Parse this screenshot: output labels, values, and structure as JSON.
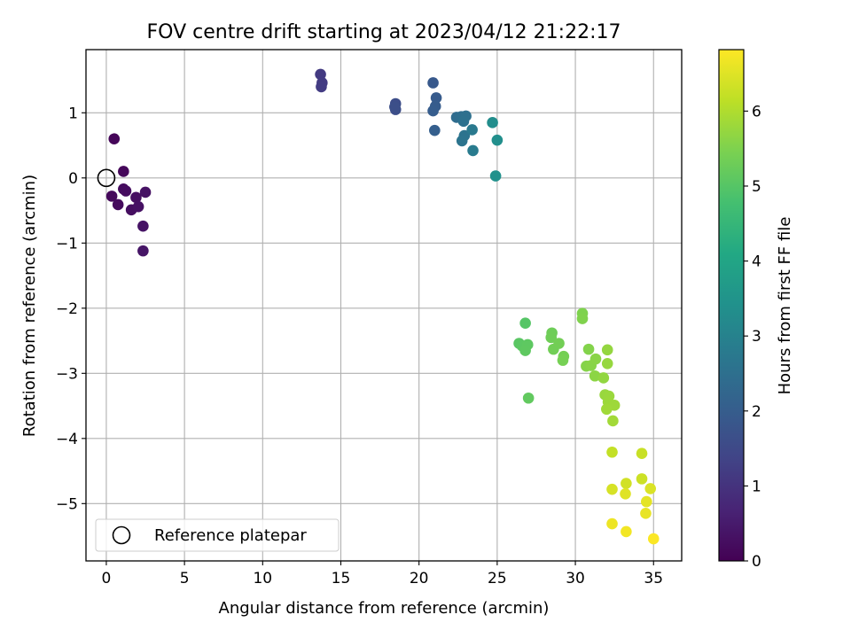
{
  "chart_data": {
    "type": "scatter",
    "title": "FOV centre drift starting at 2023/04/12 21:22:17",
    "xlabel": "Angular distance from reference (arcmin)",
    "ylabel": "Rotation from reference (arcmin)",
    "xlim": [
      -1.3,
      36.8
    ],
    "ylim": [
      -5.88,
      1.97
    ],
    "xticks": [
      0,
      5,
      10,
      15,
      20,
      25,
      30,
      35
    ],
    "yticks": [
      -5,
      -4,
      -3,
      -2,
      -1,
      0,
      1
    ],
    "grid": true,
    "legend": {
      "position": "lower-left",
      "entries": [
        "Reference platepar"
      ]
    },
    "reference_point": {
      "name": "Reference platepar",
      "x": 0,
      "y": 0,
      "marker": "open-circle"
    },
    "colorbar": {
      "label": "Hours from first FF file",
      "colormap": "viridis",
      "range": [
        0,
        6.82
      ],
      "ticks": [
        0,
        1,
        2,
        3,
        4,
        5,
        6
      ]
    },
    "series": [
      {
        "marker": "filled-circle",
        "points": [
          {
            "x": 0.5,
            "y": 0.6,
            "c": 0.1
          },
          {
            "x": 1.1,
            "y": 0.1,
            "c": 0.12
          },
          {
            "x": 0.35,
            "y": -0.28,
            "c": 0.15
          },
          {
            "x": 0.75,
            "y": -0.41,
            "c": 0.18
          },
          {
            "x": 1.1,
            "y": -0.17,
            "c": 0.2
          },
          {
            "x": 1.25,
            "y": -0.2,
            "c": 0.22
          },
          {
            "x": 1.6,
            "y": -0.49,
            "c": 0.25
          },
          {
            "x": 1.9,
            "y": -0.3,
            "c": 0.27
          },
          {
            "x": 2.05,
            "y": -0.44,
            "c": 0.3
          },
          {
            "x": 2.5,
            "y": -0.22,
            "c": 0.33
          },
          {
            "x": 2.35,
            "y": -0.74,
            "c": 0.36
          },
          {
            "x": 2.35,
            "y": -1.12,
            "c": 0.38
          },
          {
            "x": 13.7,
            "y": 1.59,
            "c": 1.15
          },
          {
            "x": 13.8,
            "y": 1.46,
            "c": 1.18
          },
          {
            "x": 13.75,
            "y": 1.4,
            "c": 1.2
          },
          {
            "x": 18.5,
            "y": 1.14,
            "c": 1.6
          },
          {
            "x": 18.5,
            "y": 1.05,
            "c": 1.62
          },
          {
            "x": 18.45,
            "y": 1.09,
            "c": 1.64
          },
          {
            "x": 20.9,
            "y": 1.46,
            "c": 1.9
          },
          {
            "x": 21.1,
            "y": 1.23,
            "c": 1.95
          },
          {
            "x": 21.05,
            "y": 1.1,
            "c": 1.98
          },
          {
            "x": 20.9,
            "y": 1.03,
            "c": 2.0
          },
          {
            "x": 21.0,
            "y": 0.73,
            "c": 2.05
          },
          {
            "x": 22.4,
            "y": 0.93,
            "c": 2.4
          },
          {
            "x": 22.7,
            "y": 0.94,
            "c": 2.45
          },
          {
            "x": 23.0,
            "y": 0.95,
            "c": 2.5
          },
          {
            "x": 22.85,
            "y": 0.87,
            "c": 2.55
          },
          {
            "x": 22.9,
            "y": 0.65,
            "c": 2.6
          },
          {
            "x": 22.75,
            "y": 0.57,
            "c": 2.62
          },
          {
            "x": 23.4,
            "y": 0.74,
            "c": 2.75
          },
          {
            "x": 23.45,
            "y": 0.42,
            "c": 2.8
          },
          {
            "x": 24.7,
            "y": 0.85,
            "c": 3.3
          },
          {
            "x": 25.0,
            "y": 0.58,
            "c": 3.35
          },
          {
            "x": 24.9,
            "y": 0.03,
            "c": 3.4
          },
          {
            "x": 26.8,
            "y": -2.23,
            "c": 5.0
          },
          {
            "x": 26.4,
            "y": -2.54,
            "c": 5.05
          },
          {
            "x": 26.6,
            "y": -2.58,
            "c": 5.08
          },
          {
            "x": 26.95,
            "y": -2.56,
            "c": 5.1
          },
          {
            "x": 26.8,
            "y": -2.65,
            "c": 5.12
          },
          {
            "x": 27.0,
            "y": -3.38,
            "c": 5.15
          },
          {
            "x": 28.5,
            "y": -2.38,
            "c": 5.3
          },
          {
            "x": 28.45,
            "y": -2.45,
            "c": 5.32
          },
          {
            "x": 28.6,
            "y": -2.63,
            "c": 5.34
          },
          {
            "x": 28.95,
            "y": -2.54,
            "c": 5.36
          },
          {
            "x": 29.25,
            "y": -2.74,
            "c": 5.38
          },
          {
            "x": 29.2,
            "y": -2.8,
            "c": 5.4
          },
          {
            "x": 30.45,
            "y": -2.08,
            "c": 5.5
          },
          {
            "x": 30.45,
            "y": -2.16,
            "c": 5.52
          },
          {
            "x": 30.85,
            "y": -2.63,
            "c": 5.55
          },
          {
            "x": 30.7,
            "y": -2.89,
            "c": 5.57
          },
          {
            "x": 31.0,
            "y": -2.88,
            "c": 5.6
          },
          {
            "x": 31.3,
            "y": -2.78,
            "c": 5.62
          },
          {
            "x": 31.25,
            "y": -3.04,
            "c": 5.64
          },
          {
            "x": 31.8,
            "y": -3.07,
            "c": 5.7
          },
          {
            "x": 32.05,
            "y": -2.64,
            "c": 5.72
          },
          {
            "x": 32.05,
            "y": -2.85,
            "c": 5.74
          },
          {
            "x": 31.9,
            "y": -3.33,
            "c": 5.76
          },
          {
            "x": 32.15,
            "y": -3.35,
            "c": 5.78
          },
          {
            "x": 32.1,
            "y": -3.44,
            "c": 5.8
          },
          {
            "x": 32.5,
            "y": -3.49,
            "c": 5.82
          },
          {
            "x": 32.0,
            "y": -3.55,
            "c": 5.84
          },
          {
            "x": 32.4,
            "y": -3.73,
            "c": 5.86
          },
          {
            "x": 32.35,
            "y": -4.21,
            "c": 6.2
          },
          {
            "x": 34.25,
            "y": -4.23,
            "c": 6.25
          },
          {
            "x": 34.25,
            "y": -4.62,
            "c": 6.3
          },
          {
            "x": 33.25,
            "y": -4.69,
            "c": 6.35
          },
          {
            "x": 32.35,
            "y": -4.78,
            "c": 6.4
          },
          {
            "x": 34.8,
            "y": -4.77,
            "c": 6.45
          },
          {
            "x": 33.2,
            "y": -4.85,
            "c": 6.5
          },
          {
            "x": 34.55,
            "y": -4.97,
            "c": 6.55
          },
          {
            "x": 34.5,
            "y": -5.15,
            "c": 6.6
          },
          {
            "x": 32.35,
            "y": -5.31,
            "c": 6.65
          },
          {
            "x": 33.25,
            "y": -5.43,
            "c": 6.7
          },
          {
            "x": 35.0,
            "y": -5.54,
            "c": 6.8
          }
        ]
      }
    ]
  }
}
